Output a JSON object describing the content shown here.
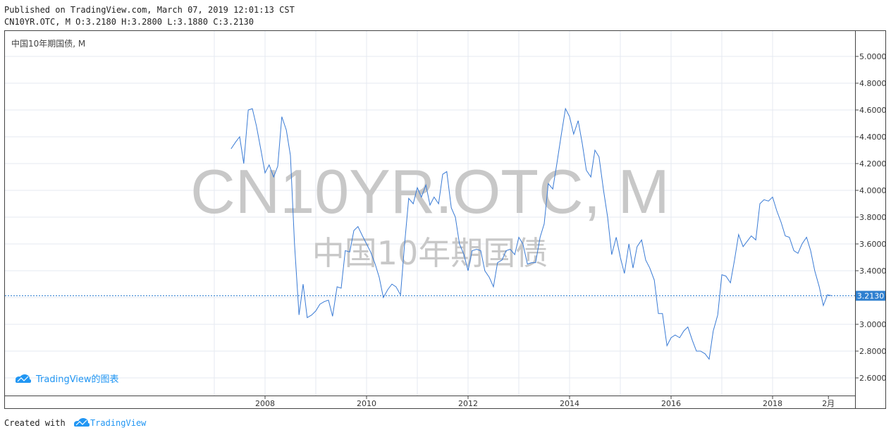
{
  "header": {
    "published": "Published on TradingView.com, March 07, 2019 12:01:13 CST",
    "ohlc": "CN10YR.OTC, M O:3.2180 H:3.2800 L:3.1880 C:3.2130"
  },
  "footer": {
    "created_with": "Created with",
    "brand": "TradingView"
  },
  "colors": {
    "line": "#3a7bd5",
    "grid": "#e6eaf0",
    "border": "#444444",
    "price_label_bg": "#2f80d0",
    "watermark": "#c8c8c8",
    "brand": "#2196f3"
  },
  "chart_data": {
    "type": "line",
    "symbol_label": "中国10年期国债, M",
    "watermark_symbol": "CN10YR.OTC, M",
    "watermark_name": "中国10年期国债",
    "logo_text": "TradingView的图表",
    "last_price": "3.2130",
    "last_value": 3.213,
    "y_ticks": [
      "5.0000",
      "4.8000",
      "4.6000",
      "4.4000",
      "4.2000",
      "4.0000",
      "3.8000",
      "3.6000",
      "3.4000",
      "3.2000",
      "3.0000",
      "2.8000",
      "2.6000"
    ],
    "x_ticks": [
      "2008",
      "2010",
      "2012",
      "2014",
      "2016",
      "2018",
      "2月"
    ],
    "ylim": [
      2.5,
      5.1
    ],
    "grid": true,
    "x": [
      2007.33,
      2007.42,
      2007.5,
      2007.58,
      2007.67,
      2007.75,
      2007.83,
      2007.92,
      2008.0,
      2008.08,
      2008.17,
      2008.25,
      2008.33,
      2008.42,
      2008.5,
      2008.58,
      2008.67,
      2008.75,
      2008.83,
      2008.92,
      2009.0,
      2009.08,
      2009.17,
      2009.25,
      2009.33,
      2009.42,
      2009.5,
      2009.58,
      2009.67,
      2009.75,
      2009.83,
      2009.92,
      2010.0,
      2010.08,
      2010.17,
      2010.25,
      2010.33,
      2010.42,
      2010.5,
      2010.58,
      2010.67,
      2010.75,
      2010.83,
      2010.92,
      2011.0,
      2011.08,
      2011.17,
      2011.25,
      2011.33,
      2011.42,
      2011.5,
      2011.58,
      2011.67,
      2011.75,
      2011.83,
      2011.92,
      2012.0,
      2012.08,
      2012.17,
      2012.25,
      2012.33,
      2012.42,
      2012.5,
      2012.58,
      2012.67,
      2012.75,
      2012.83,
      2012.92,
      2013.0,
      2013.08,
      2013.17,
      2013.25,
      2013.33,
      2013.42,
      2013.5,
      2013.58,
      2013.67,
      2013.75,
      2013.83,
      2013.92,
      2014.0,
      2014.08,
      2014.17,
      2014.25,
      2014.33,
      2014.42,
      2014.5,
      2014.58,
      2014.67,
      2014.75,
      2014.83,
      2014.92,
      2015.0,
      2015.08,
      2015.17,
      2015.25,
      2015.33,
      2015.42,
      2015.5,
      2015.58,
      2015.67,
      2015.75,
      2015.83,
      2015.92,
      2016.0,
      2016.08,
      2016.17,
      2016.25,
      2016.33,
      2016.42,
      2016.5,
      2016.58,
      2016.67,
      2016.75,
      2016.83,
      2016.92,
      2017.0,
      2017.08,
      2017.17,
      2017.25,
      2017.33,
      2017.42,
      2017.5,
      2017.58,
      2017.67,
      2017.75,
      2017.83,
      2017.92,
      2018.0,
      2018.08,
      2018.17,
      2018.25,
      2018.33,
      2018.42,
      2018.5,
      2018.58,
      2018.67,
      2018.75,
      2018.83,
      2018.92,
      2019.0,
      2019.08,
      2019.17
    ],
    "series": [
      {
        "values": [
          4.31,
          4.36,
          4.4,
          4.2,
          4.6,
          4.61,
          4.48,
          4.3,
          4.13,
          4.19,
          4.1,
          4.18,
          4.55,
          4.45,
          4.26,
          3.6,
          3.07,
          3.3,
          3.05,
          3.07,
          3.1,
          3.15,
          3.17,
          3.18,
          3.06,
          3.28,
          3.27,
          3.55,
          3.54,
          3.7,
          3.73,
          3.66,
          3.6,
          3.54,
          3.45,
          3.35,
          3.2,
          3.26,
          3.3,
          3.28,
          3.22,
          3.6,
          3.94,
          3.9,
          4.02,
          3.95,
          4.04,
          3.89,
          3.95,
          3.9,
          4.12,
          4.14,
          3.87,
          3.8,
          3.6,
          3.52,
          3.4,
          3.55,
          3.56,
          3.55,
          3.4,
          3.35,
          3.28,
          3.46,
          3.48,
          3.55,
          3.56,
          3.52,
          3.65,
          3.6,
          3.45,
          3.46,
          3.46,
          3.65,
          3.75,
          4.05,
          4.01,
          4.2,
          4.4,
          4.61,
          4.55,
          4.42,
          4.52,
          4.35,
          4.15,
          4.1,
          4.3,
          4.25,
          4.0,
          3.8,
          3.52,
          3.65,
          3.5,
          3.38,
          3.6,
          3.42,
          3.58,
          3.63,
          3.48,
          3.42,
          3.33,
          3.08,
          3.08,
          2.84,
          2.9,
          2.92,
          2.9,
          2.95,
          2.98,
          2.88,
          2.8,
          2.8,
          2.78,
          2.74,
          2.95,
          3.07,
          3.37,
          3.36,
          3.31,
          3.48,
          3.67,
          3.58,
          3.62,
          3.66,
          3.63,
          3.9,
          3.93,
          3.92,
          3.95,
          3.85,
          3.76,
          3.66,
          3.65,
          3.55,
          3.53,
          3.6,
          3.65,
          3.55,
          3.4,
          3.28,
          3.14,
          3.22,
          3.213
        ]
      }
    ]
  }
}
